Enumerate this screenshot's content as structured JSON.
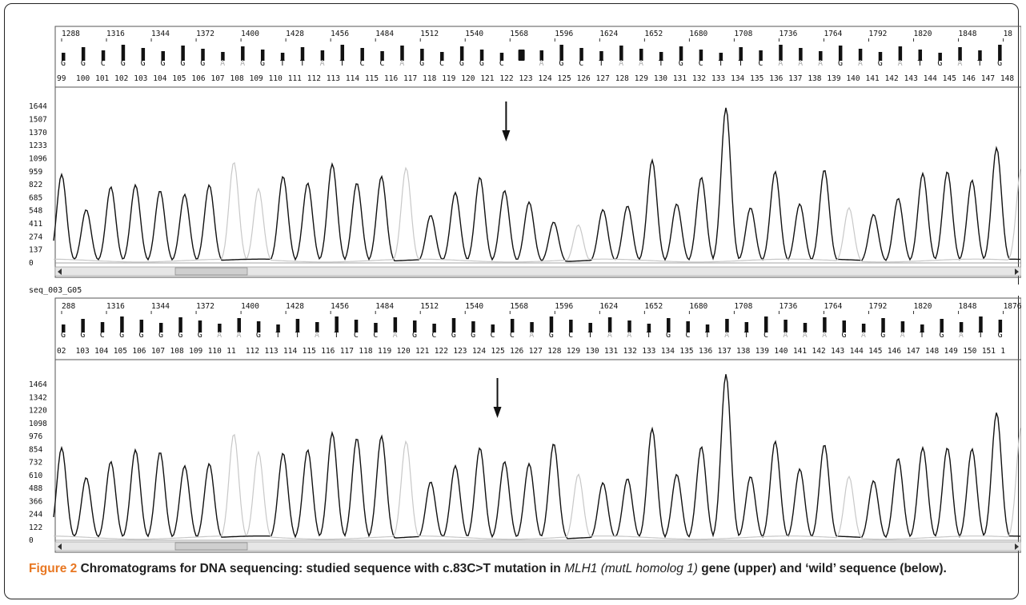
{
  "figure": {
    "caption_label": "Figure 2",
    "caption_text_1": "Chromatograms for DNA sequencing: studied sequence with c.83C>T mutation in",
    "caption_gene": "MLH1 (mutL homolog 1)",
    "caption_text_2": "gene (upper) and ‘wild’ sequence (below)."
  },
  "colors": {
    "trace_primary": "#111111",
    "trace_secondary": "#c8c8c8",
    "scrollbar_bg": "#e6e6e6"
  },
  "chart_data": [
    {
      "type": "line",
      "panel": "upper",
      "label": "",
      "title": "",
      "xlabel": "",
      "ylabel": "",
      "ylim": [
        0,
        1780
      ],
      "scan_ticks": [
        "1288",
        "1316",
        "1344",
        "1372",
        "1400",
        "1428",
        "1456",
        "1484",
        "1512",
        "1540",
        "1568",
        "1596",
        "1624",
        "1652",
        "1680",
        "1708",
        "1736",
        "1764",
        "1792",
        "1820",
        "1848",
        "18"
      ],
      "bases": [
        "G",
        "G",
        "C",
        "G",
        "G",
        "G",
        "G",
        "G",
        "A",
        "A",
        "G",
        "T",
        "T",
        "A",
        "T",
        "C",
        "C",
        "A",
        "G",
        "C",
        "G",
        "G",
        "C",
        "",
        "A",
        "G",
        "C",
        "T",
        "A",
        "A",
        "T",
        "G",
        "C",
        "T",
        "T",
        "C",
        "A",
        "A",
        "A",
        "G",
        "A",
        "G",
        "A",
        "T",
        "G",
        "A",
        "T",
        "G"
      ],
      "position_labels": [
        "99",
        "100",
        "101",
        "102",
        "103",
        "104",
        "105",
        "106",
        "107",
        "108",
        "109",
        "110",
        "111",
        "112",
        "113",
        "114",
        "115",
        "116",
        "117",
        "118",
        "119",
        "120",
        "121",
        "122",
        "123",
        "124",
        "125",
        "126",
        "127",
        "128",
        "129",
        "130",
        "131",
        "132",
        "133",
        "134",
        "135",
        "136",
        "137",
        "138",
        "139",
        "140",
        "141",
        "142",
        "143",
        "144",
        "145",
        "146",
        "147",
        "148"
      ],
      "yticks": [
        0,
        137,
        274,
        411,
        548,
        685,
        822,
        959,
        1096,
        1233,
        1370,
        1507,
        1644
      ],
      "arrow_at_base": "122",
      "series": [
        {
          "color": "#111111",
          "peaks": [
            [
              0,
              930
            ],
            [
              1,
              560
            ],
            [
              2,
              800
            ],
            [
              3,
              820
            ],
            [
              4,
              760
            ],
            [
              5,
              720
            ],
            [
              6,
              820
            ],
            [
              9,
              910
            ],
            [
              10,
              840
            ],
            [
              11,
              1040
            ],
            [
              12,
              840
            ],
            [
              13,
              910
            ],
            [
              15,
              500
            ],
            [
              16,
              740
            ],
            [
              17,
              900
            ],
            [
              18,
              760
            ],
            [
              19,
              640
            ],
            [
              20,
              430
            ],
            [
              22,
              560
            ],
            [
              23,
              600
            ],
            [
              24,
              1080
            ],
            [
              25,
              620
            ],
            [
              26,
              900
            ],
            [
              27,
              1630
            ],
            [
              28,
              580
            ],
            [
              29,
              960
            ],
            [
              30,
              620
            ],
            [
              31,
              980
            ],
            [
              33,
              510
            ],
            [
              34,
              680
            ],
            [
              35,
              940
            ],
            [
              36,
              960
            ],
            [
              37,
              870
            ],
            [
              38,
              1210
            ]
          ]
        },
        {
          "color": "#c8c8c8",
          "peaks": [
            [
              7,
              1060
            ],
            [
              8,
              780
            ],
            [
              14,
              1000
            ],
            [
              21,
              400
            ],
            [
              32,
              580
            ],
            [
              39,
              1000
            ],
            [
              40,
              800
            ],
            [
              41,
              1120
            ],
            [
              42,
              920
            ],
            [
              43,
              980
            ]
          ]
        }
      ]
    },
    {
      "type": "line",
      "panel": "lower",
      "label": "seq_003_G05",
      "title": "",
      "xlabel": "",
      "ylabel": "",
      "ylim": [
        0,
        1600
      ],
      "scan_ticks": [
        "288",
        "1316",
        "1344",
        "1372",
        "1400",
        "1428",
        "1456",
        "1484",
        "1512",
        "1540",
        "1568",
        "1596",
        "1624",
        "1652",
        "1680",
        "1708",
        "1736",
        "1764",
        "1792",
        "1820",
        "1848",
        "1876"
      ],
      "bases": [
        "G",
        "G",
        "C",
        "G",
        "G",
        "G",
        "G",
        "G",
        "A",
        "A",
        "G",
        "T",
        "T",
        "A",
        "T",
        "C",
        "C",
        "A",
        "G",
        "C",
        "G",
        "G",
        "C",
        "C",
        "A",
        "G",
        "C",
        "T",
        "A",
        "A",
        "T",
        "G",
        "C",
        "T",
        "A",
        "T",
        "C",
        "A",
        "A",
        "A",
        "G",
        "A",
        "G",
        "A",
        "T",
        "G",
        "A",
        "T",
        "G"
      ],
      "position_labels": [
        "02",
        "103",
        "104",
        "105",
        "106",
        "107",
        "108",
        "109",
        "110",
        "11",
        "112",
        "113",
        "114",
        "115",
        "116",
        "117",
        "118",
        "119",
        "120",
        "121",
        "122",
        "123",
        "124",
        "125",
        "126",
        "127",
        "128",
        "129",
        "130",
        "131",
        "132",
        "133",
        "134",
        "135",
        "136",
        "137",
        "138",
        "139",
        "140",
        "141",
        "142",
        "143",
        "144",
        "145",
        "146",
        "147",
        "148",
        "149",
        "150",
        "151",
        "1"
      ],
      "yticks": [
        0,
        122,
        244,
        366,
        488,
        610,
        732,
        854,
        976,
        1098,
        1220,
        1342,
        1464
      ],
      "arrow_at_base": "125",
      "series": [
        {
          "color": "#111111",
          "peaks": [
            [
              0,
              870
            ],
            [
              1,
              590
            ],
            [
              2,
              740
            ],
            [
              3,
              850
            ],
            [
              4,
              830
            ],
            [
              5,
              700
            ],
            [
              6,
              720
            ],
            [
              9,
              820
            ],
            [
              10,
              850
            ],
            [
              11,
              1010
            ],
            [
              12,
              960
            ],
            [
              13,
              980
            ],
            [
              15,
              550
            ],
            [
              16,
              700
            ],
            [
              17,
              870
            ],
            [
              18,
              740
            ],
            [
              19,
              720
            ],
            [
              20,
              910
            ],
            [
              22,
              540
            ],
            [
              23,
              580
            ],
            [
              24,
              1050
            ],
            [
              25,
              620
            ],
            [
              26,
              880
            ],
            [
              27,
              1560
            ],
            [
              28,
              600
            ],
            [
              29,
              930
            ],
            [
              30,
              670
            ],
            [
              31,
              900
            ],
            [
              33,
              560
            ],
            [
              34,
              770
            ],
            [
              35,
              870
            ],
            [
              36,
              870
            ],
            [
              37,
              860
            ],
            [
              38,
              1200
            ]
          ]
        },
        {
          "color": "#c8c8c8",
          "peaks": [
            [
              7,
              1000
            ],
            [
              8,
              830
            ],
            [
              14,
              930
            ],
            [
              21,
              620
            ],
            [
              32,
              600
            ],
            [
              39,
              1070
            ],
            [
              40,
              850
            ],
            [
              41,
              960
            ],
            [
              42,
              880
            ],
            [
              43,
              1020
            ]
          ]
        }
      ]
    }
  ]
}
